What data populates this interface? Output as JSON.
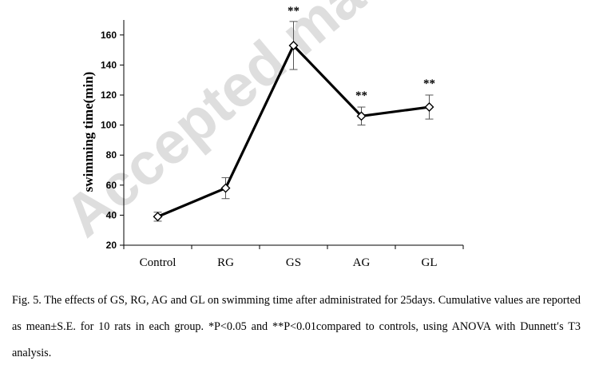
{
  "watermark": "Accepted ma",
  "chart_data": {
    "type": "line",
    "categories": [
      "Control",
      "RG",
      "GS",
      "AG",
      "GL"
    ],
    "series": [
      {
        "values": [
          39,
          58,
          153,
          106,
          112
        ],
        "errors": [
          3,
          7,
          16,
          6,
          8
        ]
      }
    ],
    "significance": [
      "",
      "",
      "**",
      "**",
      "**"
    ],
    "ylabel": "swimming time(min)",
    "xlabel": "",
    "ylim": [
      20,
      170
    ],
    "yticks": [
      20,
      40,
      60,
      80,
      100,
      120,
      140,
      160
    ],
    "grid": false,
    "marker": "diamond",
    "line_color": "#000000"
  },
  "caption": "Fig. 5. The effects of GS, RG, AG and GL on swimming time after administrated for 25days. Cumulative values are reported as mean±S.E. for 10 rats in each group. *P<0.05 and **P<0.01compared to controls, using ANOVA with Dunnett′s T3 analysis."
}
